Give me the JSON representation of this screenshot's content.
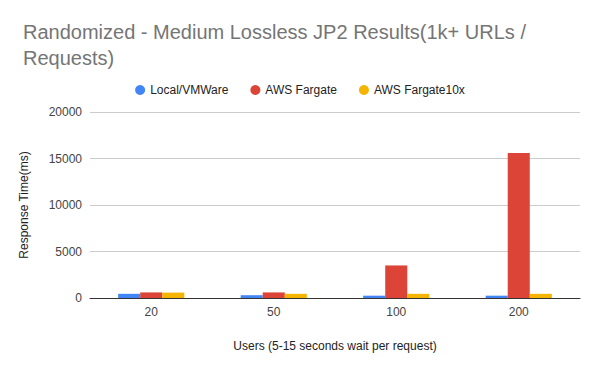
{
  "chart_data": {
    "type": "bar",
    "title": "Randomized - Medium Lossless JP2 Results(1k+ URLs / Requests)",
    "x_label": "Users (5-15 seconds wait per request)",
    "y_label": "Response Time(ms)",
    "categories": [
      "20",
      "50",
      "100",
      "200"
    ],
    "series": [
      {
        "name": "Local/VMWare",
        "color": "#4285f4",
        "values": [
          450,
          300,
          250,
          250
        ]
      },
      {
        "name": "AWS Fargate",
        "color": "#db4437",
        "values": [
          600,
          600,
          3500,
          15600
        ]
      },
      {
        "name": "AWS Fargate10x",
        "color": "#f4b400",
        "values": [
          580,
          450,
          450,
          450
        ]
      }
    ],
    "ylim": [
      0,
      20000
    ],
    "yticks": [
      0,
      5000,
      10000,
      15000,
      20000
    ],
    "grid": true,
    "legend": "top"
  }
}
